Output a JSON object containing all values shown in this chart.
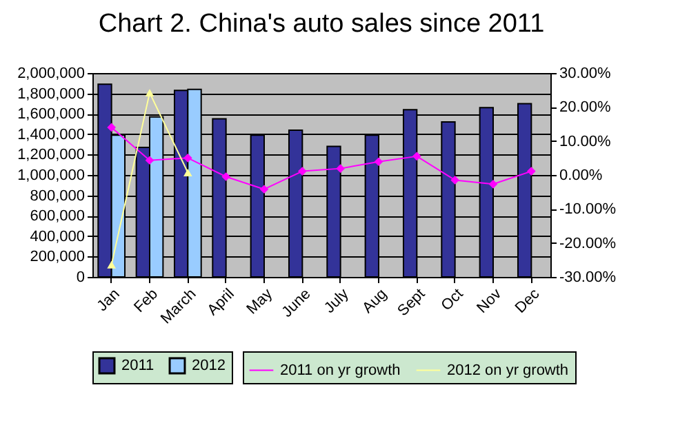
{
  "chart_data": {
    "type": "bar",
    "title": "Chart 2. China's auto sales since 2011",
    "categories": [
      "Jan",
      "Feb",
      "March",
      "April",
      "May",
      "June",
      "July",
      "Aug",
      "Sept",
      "Oct",
      "Nov",
      "Dec"
    ],
    "series": [
      {
        "name": "2011",
        "color": "#333399",
        "values": [
          1890000,
          1270000,
          1830000,
          1550000,
          1390000,
          1440000,
          1280000,
          1390000,
          1640000,
          1520000,
          1660000,
          1700000
        ]
      },
      {
        "name": "2012",
        "color": "#99ccff",
        "values": [
          1390000,
          1570000,
          1840000,
          null,
          null,
          null,
          null,
          null,
          null,
          null,
          null,
          null
        ]
      },
      {
        "name": "2011 on yr growth",
        "type": "line",
        "axis": "y2",
        "marker": "diamond",
        "color": "#ff00ff",
        "values": [
          14.0,
          4.3,
          5.0,
          -0.5,
          -4.2,
          1.1,
          1.9,
          3.9,
          5.5,
          -1.5,
          -2.7,
          1.1
        ]
      },
      {
        "name": "2012 on yr growth",
        "type": "line",
        "axis": "y2",
        "marker": "triangle",
        "color": "#ffff99",
        "values": [
          -26.4,
          24.2,
          0.7,
          null,
          null,
          null,
          null,
          null,
          null,
          null,
          null,
          null
        ]
      }
    ],
    "ylim": [
      0,
      2000000
    ],
    "yticks": [
      {
        "value": 0,
        "label": "0"
      },
      {
        "value": 200000,
        "label": "200,000"
      },
      {
        "value": 400000,
        "label": "400,000"
      },
      {
        "value": 600000,
        "label": "600,000"
      },
      {
        "value": 800000,
        "label": "800,000"
      },
      {
        "value": 1000000,
        "label": "1,000,000"
      },
      {
        "value": 1200000,
        "label": "1,200,000"
      },
      {
        "value": 1400000,
        "label": "1,400,000"
      },
      {
        "value": 1600000,
        "label": "1,600,000"
      },
      {
        "value": 1800000,
        "label": "1,800,000"
      },
      {
        "value": 2000000,
        "label": "2,000,000"
      }
    ],
    "y2lim": [
      -30,
      30
    ],
    "y2ticks": [
      {
        "value": -30,
        "label": "-30.00%"
      },
      {
        "value": -20,
        "label": "-20.00%"
      },
      {
        "value": -10,
        "label": "-10.00%"
      },
      {
        "value": 0,
        "label": "0.00%"
      },
      {
        "value": 10,
        "label": "10.00%"
      },
      {
        "value": 20,
        "label": "20.00%"
      },
      {
        "value": 30,
        "label": "30.00%"
      }
    ],
    "grid": "y",
    "legend": "bottom"
  }
}
